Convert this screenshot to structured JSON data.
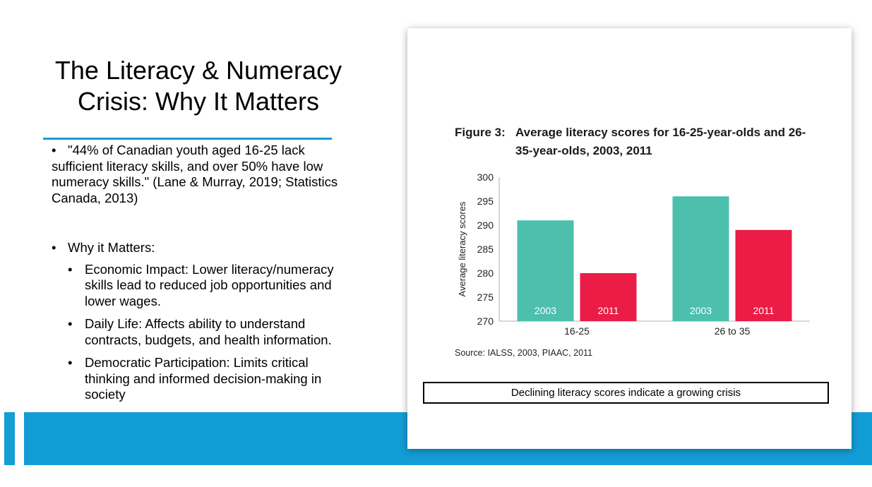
{
  "slide": {
    "title": "The Literacy & Numeracy Crisis: Why It Matters",
    "quote": "\"44% of Canadian youth aged 16-25 lack sufficient literacy skills, and over 50% have low numeracy skills.\" (Lane & Murray, 2019; Statistics Canada, 2013)",
    "section_heading": "Why it Matters:",
    "points": [
      "Economic Impact: Lower literacy/numeracy skills lead to reduced job opportunities and lower wages.",
      "Daily Life: Affects ability to understand contracts, budgets, and health information.",
      "Democratic Participation: Limits critical thinking and informed decision-making in society"
    ],
    "bullet": "•"
  },
  "figure": {
    "label": "Figure 3:",
    "title": "Average literacy scores for 16-25-year-olds and 26-35-year-olds, 2003, 2011",
    "source": "Source: IALSS, 2003, PIAAC, 2011",
    "caption": "Declining literacy scores indicate a growing crisis"
  },
  "colors": {
    "accent": "#139dd6",
    "series_2003": "#4cbfad",
    "series_2011": "#eb1c46"
  },
  "chart_data": {
    "type": "bar",
    "categories": [
      "16-25",
      "26 to 35"
    ],
    "series": [
      {
        "name": "2003",
        "values": [
          291,
          296
        ]
      },
      {
        "name": "2011",
        "values": [
          280,
          289
        ]
      }
    ],
    "ylabel": "Average literacy scores",
    "xlabel": "",
    "ylim": [
      270,
      300
    ],
    "yticks": [
      270,
      275,
      280,
      285,
      290,
      295,
      300
    ],
    "bar_labels_inside": true,
    "grid": false,
    "legend": "none"
  }
}
